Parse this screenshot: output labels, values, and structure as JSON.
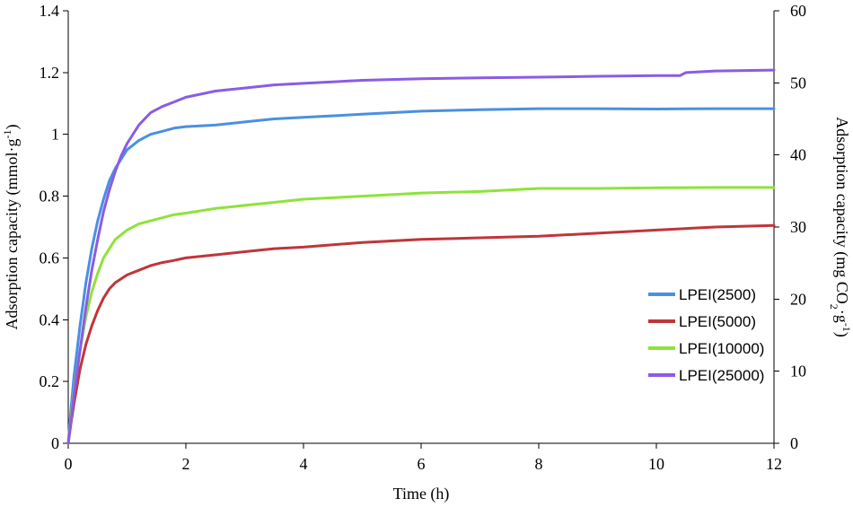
{
  "chart_data": {
    "type": "line",
    "title": "",
    "xlabel": "Time (h)",
    "ylabel": "Adsorption capacity (mmol·g",
    "ylabel_sup": "-1",
    "ylabel_close": ")",
    "y2label_pre": "Adsorption capacity (mg CO",
    "y2label_sub": "2",
    "y2label_mid": "·g",
    "y2label_sup": "-1",
    "y2label_close": ")",
    "xlim": [
      0,
      12
    ],
    "ylim": [
      0,
      1.4
    ],
    "y2lim": [
      0,
      60
    ],
    "x_ticks": [
      "0",
      "2",
      "4",
      "6",
      "8",
      "10",
      "12"
    ],
    "x_tick_values": [
      0,
      2,
      4,
      6,
      8,
      10,
      12
    ],
    "y_ticks": [
      "0",
      "0.2",
      "0.4",
      "0.6",
      "0.8",
      "1",
      "1.2",
      "1.4"
    ],
    "y_tick_values": [
      0,
      0.2,
      0.4,
      0.6,
      0.8,
      1.0,
      1.2,
      1.4
    ],
    "y2_ticks": [
      "0",
      "10",
      "20",
      "30",
      "40",
      "50",
      "60"
    ],
    "y2_tick_values": [
      0,
      10,
      20,
      30,
      40,
      50,
      60
    ],
    "grid": false,
    "legend_position": "right",
    "series": [
      {
        "name": "LPEI(2500)",
        "color": "#4a90e2",
        "x": [
          0,
          0.05,
          0.1,
          0.2,
          0.3,
          0.4,
          0.5,
          0.6,
          0.7,
          0.8,
          0.9,
          1.0,
          1.2,
          1.4,
          1.6,
          1.8,
          2.0,
          2.5,
          3.0,
          3.5,
          4.0,
          5.0,
          6.0,
          7.0,
          8.0,
          9.0,
          10.0,
          11.0,
          12.0
        ],
        "y": [
          0,
          0.12,
          0.22,
          0.38,
          0.52,
          0.63,
          0.72,
          0.79,
          0.85,
          0.89,
          0.92,
          0.95,
          0.98,
          1.0,
          1.01,
          1.02,
          1.025,
          1.03,
          1.04,
          1.05,
          1.055,
          1.065,
          1.075,
          1.08,
          1.083,
          1.083,
          1.082,
          1.083,
          1.083
        ]
      },
      {
        "name": "LPEI(5000)",
        "color": "#c0353a",
        "x": [
          0,
          0.05,
          0.1,
          0.2,
          0.3,
          0.4,
          0.5,
          0.6,
          0.7,
          0.8,
          1.0,
          1.2,
          1.4,
          1.6,
          1.8,
          2.0,
          2.5,
          3.0,
          3.5,
          4.0,
          5.0,
          6.0,
          7.0,
          8.0,
          9.0,
          10.0,
          11.0,
          12.0
        ],
        "y": [
          0,
          0.07,
          0.13,
          0.24,
          0.32,
          0.38,
          0.43,
          0.47,
          0.5,
          0.52,
          0.545,
          0.56,
          0.575,
          0.585,
          0.592,
          0.6,
          0.61,
          0.62,
          0.63,
          0.635,
          0.65,
          0.66,
          0.665,
          0.67,
          0.68,
          0.69,
          0.7,
          0.705
        ]
      },
      {
        "name": "LPEI(10000)",
        "color": "#8ee33a",
        "x": [
          0,
          0.05,
          0.1,
          0.2,
          0.3,
          0.4,
          0.5,
          0.6,
          0.7,
          0.8,
          1.0,
          1.2,
          1.4,
          1.6,
          1.8,
          2.0,
          2.5,
          3.0,
          3.5,
          4.0,
          5.0,
          6.0,
          7.0,
          8.0,
          9.0,
          10.0,
          11.0,
          12.0
        ],
        "y": [
          0,
          0.09,
          0.17,
          0.3,
          0.41,
          0.49,
          0.55,
          0.6,
          0.63,
          0.66,
          0.69,
          0.71,
          0.72,
          0.73,
          0.74,
          0.745,
          0.76,
          0.77,
          0.78,
          0.79,
          0.8,
          0.81,
          0.815,
          0.825,
          0.825,
          0.827,
          0.828,
          0.828
        ]
      },
      {
        "name": "LPEI(25000)",
        "color": "#8a5ce6",
        "x": [
          0,
          0.05,
          0.1,
          0.2,
          0.3,
          0.4,
          0.5,
          0.6,
          0.7,
          0.8,
          0.9,
          1.0,
          1.2,
          1.4,
          1.6,
          1.8,
          2.0,
          2.5,
          3.0,
          3.5,
          4.0,
          5.0,
          6.0,
          7.0,
          8.0,
          9.0,
          10.0,
          10.4,
          10.5,
          11.0,
          12.0
        ],
        "y": [
          0,
          0.08,
          0.16,
          0.3,
          0.44,
          0.56,
          0.66,
          0.75,
          0.82,
          0.88,
          0.93,
          0.97,
          1.03,
          1.07,
          1.09,
          1.105,
          1.12,
          1.14,
          1.15,
          1.16,
          1.165,
          1.175,
          1.18,
          1.183,
          1.185,
          1.188,
          1.19,
          1.19,
          1.2,
          1.205,
          1.208
        ]
      }
    ]
  }
}
